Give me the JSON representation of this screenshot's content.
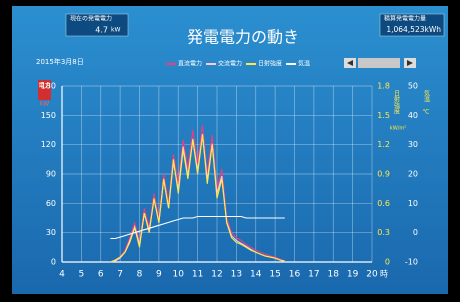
{
  "chart_data": {
    "type": "line",
    "title": "発電電力の動き",
    "current_power_label": "現在の発電電力",
    "current_power_value": 4.7,
    "current_power_unit": "kW",
    "total_energy_label": "積算発電電力量",
    "total_energy_value": "1,064,523kWh",
    "date": "2015年3月8日",
    "y_label": "電力",
    "y_unit": "kW",
    "y2_label": "日射強度",
    "y2_unit": "kW/m²",
    "y3_label": "気温",
    "y3_unit": "℃",
    "x_unit": "時",
    "grid": true,
    "xlim": [
      4,
      20
    ],
    "xticks": [
      4,
      5,
      6,
      7,
      8,
      9,
      10,
      11,
      12,
      13,
      14,
      15,
      16,
      17,
      18,
      19,
      20
    ],
    "ylim": [
      0,
      180
    ],
    "yticks": [
      0,
      30,
      60,
      90,
      120,
      150,
      180
    ],
    "y2lim": [
      0,
      1.8
    ],
    "y2ticks": [
      0,
      0.3,
      0.6,
      0.9,
      1.2,
      1.5,
      1.8
    ],
    "y3lim": [
      -10,
      50
    ],
    "y3ticks": [
      -10,
      0,
      10,
      20,
      30,
      40,
      50
    ],
    "x": [
      6.5,
      6.75,
      7,
      7.25,
      7.5,
      7.75,
      8,
      8.25,
      8.5,
      8.75,
      9,
      9.25,
      9.5,
      9.75,
      10,
      10.25,
      10.5,
      10.75,
      11,
      11.25,
      11.5,
      11.75,
      12,
      12.25,
      12.5,
      12.75,
      13,
      13.25,
      13.5,
      13.75,
      14,
      14.25,
      14.5,
      14.75,
      15,
      15.25,
      15.5
    ],
    "series": [
      {
        "name": "直流電力",
        "color": "#e8407e",
        "axis": "y",
        "values": [
          0,
          2,
          5,
          12,
          25,
          40,
          20,
          55,
          35,
          70,
          45,
          90,
          60,
          110,
          80,
          125,
          95,
          135,
          100,
          140,
          90,
          130,
          75,
          95,
          45,
          30,
          25,
          22,
          18,
          15,
          12,
          10,
          8,
          6,
          5,
          3,
          1
        ]
      },
      {
        "name": "交流電力",
        "color": "#ffc8dc",
        "axis": "y",
        "values": [
          0,
          1,
          4,
          10,
          22,
          36,
          18,
          50,
          32,
          64,
          41,
          84,
          55,
          102,
          74,
          118,
          88,
          126,
          93,
          131,
          84,
          121,
          70,
          88,
          41,
          27,
          22,
          19,
          16,
          13,
          10,
          8,
          6,
          5,
          4,
          2,
          0
        ]
      },
      {
        "name": "日射強度",
        "color": "#ffe94a",
        "axis": "y2",
        "values": [
          0,
          0.02,
          0.05,
          0.1,
          0.2,
          0.35,
          0.15,
          0.5,
          0.3,
          0.65,
          0.4,
          0.85,
          0.55,
          1.05,
          0.7,
          1.15,
          0.85,
          1.25,
          0.9,
          1.3,
          0.8,
          1.2,
          0.65,
          0.85,
          0.4,
          0.25,
          0.2,
          0.18,
          0.15,
          0.12,
          0.1,
          0.08,
          0.06,
          0.05,
          0.04,
          0.02,
          0.01
        ]
      },
      {
        "name": "気温",
        "color": "#ffffff",
        "axis": "y3",
        "values": [
          -2,
          -2,
          -1.5,
          -1,
          -0.5,
          0,
          0.5,
          1,
          1.5,
          2,
          2.5,
          3,
          3.5,
          4,
          4.5,
          5,
          5,
          5,
          5.5,
          5.5,
          5.5,
          5.5,
          5.5,
          5.5,
          5.5,
          5.5,
          5.5,
          5.5,
          5,
          5,
          5,
          5,
          5,
          5,
          5,
          5,
          5
        ]
      }
    ]
  }
}
